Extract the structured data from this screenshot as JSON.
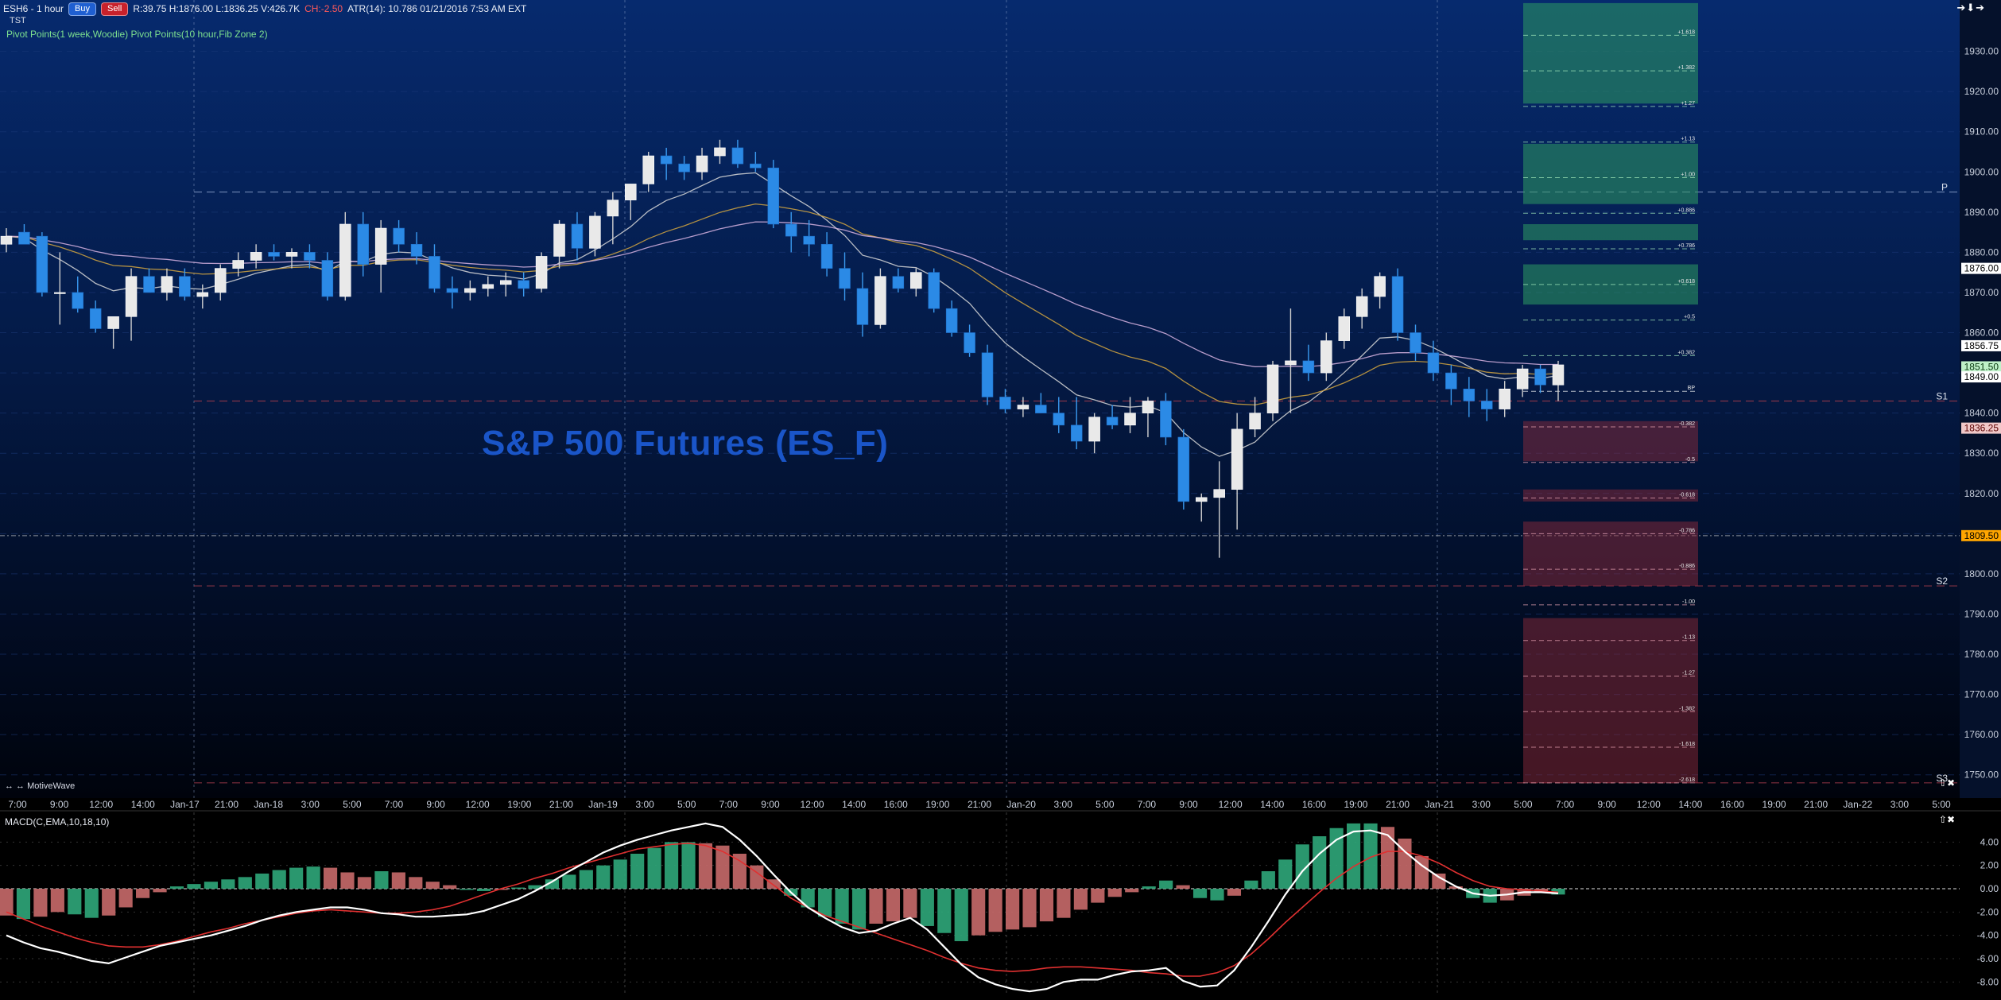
{
  "header": {
    "symbol": "ESH6 - 1 hour",
    "buy_label": "Buy",
    "sell_label": "Sell",
    "stats": "R:39.75  H:1876.00  L:1836.25  V:426.7K",
    "change": "CH:-2.50",
    "atr_info": "ATR(14): 10.786  01/21/2016 7:53 AM  EXT",
    "subtitle": "TST",
    "studies": "Pivot Points(1 week,Woodie) Pivot Points(10 hour,Fib Zone 2)"
  },
  "macd_label": "MACD(C,EMA,10,18,10)",
  "footer_brand": "MotiveWave",
  "corner_icons": "➔➕➔",
  "watermark": "S&P 500 Futures (ES_F)",
  "colors": {
    "bg_top": "#062a6e",
    "bg_bottom": "#000000",
    "up_candle": "#e9e9e9",
    "down_candle": "#2b8ae6",
    "macd_line": "#ffffff",
    "signal_line": "#e03030",
    "hist_pos_up": "#2fa77a",
    "hist_pos_down": "#c86a6a",
    "ema_fast": "#d8d8d8",
    "ema_mid": "#d4a640",
    "ema_slow": "#d7b3e0",
    "current_price": "#ffa500"
  },
  "chart_data": [
    {
      "type": "candlestick",
      "title": "ESH6 - 1 hour",
      "ylim": [
        1745,
        1940
      ],
      "y_ticks": [
        1750,
        1760,
        1770,
        1780,
        1790,
        1800,
        1810,
        1820,
        1830,
        1840,
        1850,
        1860,
        1870,
        1880,
        1890,
        1900,
        1910,
        1920,
        1930
      ],
      "x_tick_labels": [
        "7:00",
        "9:00",
        "12:00",
        "14:00",
        "Jan-17",
        "21:00",
        "Jan-18",
        "3:00",
        "5:00",
        "7:00",
        "9:00",
        "12:00",
        "19:00",
        "21:00",
        "Jan-19",
        "3:00",
        "5:00",
        "7:00",
        "9:00",
        "12:00",
        "14:00",
        "16:00",
        "19:00",
        "21:00",
        "Jan-20",
        "3:00",
        "5:00",
        "7:00",
        "9:00",
        "12:00",
        "14:00",
        "16:00",
        "19:00",
        "21:00",
        "Jan-21",
        "3:00",
        "5:00",
        "7:00",
        "9:00",
        "12:00",
        "14:00",
        "16:00",
        "19:00",
        "21:00",
        "Jan-22",
        "3:00",
        "5:00"
      ],
      "price_labels": [
        {
          "text": "1876.00",
          "value": 1876.0
        },
        {
          "text": "1856.75",
          "value": 1856.75
        },
        {
          "text": "1851.50",
          "value": 1851.5
        },
        {
          "text": "1849.00",
          "value": 1849.0
        },
        {
          "text": "1836.25",
          "value": 1836.25
        },
        {
          "text": "1809.50",
          "value": 1809.5
        }
      ],
      "pivot_labels": [
        {
          "text": "P",
          "value": 1895
        },
        {
          "text": "S1",
          "value": 1843
        },
        {
          "text": "S2",
          "value": 1797
        },
        {
          "text": "S3",
          "value": 1748
        }
      ],
      "fib_zones": [
        {
          "low": 1917,
          "high": 1942,
          "color": "green"
        },
        {
          "low": 1892,
          "high": 1907,
          "color": "green"
        },
        {
          "low": 1883,
          "high": 1887,
          "color": "green"
        },
        {
          "low": 1867,
          "high": 1877,
          "color": "green"
        },
        {
          "low": 1828,
          "high": 1838,
          "color": "red"
        },
        {
          "low": 1818,
          "high": 1821,
          "color": "red"
        },
        {
          "low": 1797,
          "high": 1813,
          "color": "red"
        },
        {
          "low": 1748,
          "high": 1789,
          "color": "red"
        }
      ],
      "fib_labels": [
        "+1.618",
        "+1.382",
        "+1.27",
        "+1.13",
        "+1.00",
        "+0.886",
        "+0.786",
        "+0.618",
        "+0.5",
        "+0.382",
        "BP",
        "-0.382",
        "-0.5",
        "-0.618",
        "-0.786",
        "-0.886",
        "-1.00",
        "-1.13",
        "-1.27",
        "-1.382",
        "-1.618",
        "-2.618"
      ],
      "candles": [
        [
          1882,
          1886,
          1880,
          1884
        ],
        [
          1885,
          1887,
          1882,
          1882
        ],
        [
          1884,
          1885,
          1869,
          1870
        ],
        [
          1870,
          1880,
          1862,
          1870
        ],
        [
          1870,
          1874,
          1865,
          1866
        ],
        [
          1866,
          1868,
          1860,
          1861
        ],
        [
          1861,
          1864,
          1856,
          1864
        ],
        [
          1864,
          1876,
          1858,
          1874
        ],
        [
          1874,
          1876,
          1870,
          1870
        ],
        [
          1870,
          1876,
          1868,
          1874
        ],
        [
          1874,
          1876,
          1868,
          1869
        ],
        [
          1869,
          1872,
          1866,
          1870
        ],
        [
          1870,
          1877,
          1868,
          1876
        ],
        [
          1876,
          1880,
          1874,
          1878
        ],
        [
          1878,
          1882,
          1876,
          1880
        ],
        [
          1880,
          1882,
          1878,
          1879
        ],
        [
          1879,
          1881,
          1876,
          1880
        ],
        [
          1880,
          1882,
          1876,
          1878
        ],
        [
          1878,
          1880,
          1868,
          1869
        ],
        [
          1869,
          1890,
          1868,
          1887
        ],
        [
          1887,
          1890,
          1874,
          1877
        ],
        [
          1877,
          1888,
          1870,
          1886
        ],
        [
          1886,
          1888,
          1880,
          1882
        ],
        [
          1882,
          1885,
          1877,
          1879
        ],
        [
          1879,
          1882,
          1870,
          1871
        ],
        [
          1871,
          1874,
          1866,
          1870
        ],
        [
          1870,
          1873,
          1868,
          1871
        ],
        [
          1871,
          1874,
          1869,
          1872
        ],
        [
          1872,
          1875,
          1869,
          1873
        ],
        [
          1873,
          1875,
          1869,
          1871
        ],
        [
          1871,
          1880,
          1870,
          1879
        ],
        [
          1879,
          1888,
          1876,
          1887
        ],
        [
          1887,
          1890,
          1878,
          1881
        ],
        [
          1881,
          1890,
          1879,
          1889
        ],
        [
          1889,
          1895,
          1882,
          1893
        ],
        [
          1893,
          1897,
          1888,
          1897
        ],
        [
          1897,
          1905,
          1895,
          1904
        ],
        [
          1904,
          1906,
          1898,
          1902
        ],
        [
          1902,
          1904,
          1898,
          1900
        ],
        [
          1900,
          1906,
          1898,
          1904
        ],
        [
          1904,
          1908,
          1902,
          1906
        ],
        [
          1906,
          1908,
          1901,
          1902
        ],
        [
          1902,
          1905,
          1900,
          1901
        ],
        [
          1901,
          1903,
          1886,
          1887
        ],
        [
          1887,
          1890,
          1880,
          1884
        ],
        [
          1884,
          1888,
          1879,
          1882
        ],
        [
          1882,
          1885,
          1874,
          1876
        ],
        [
          1876,
          1880,
          1868,
          1871
        ],
        [
          1871,
          1875,
          1859,
          1862
        ],
        [
          1862,
          1876,
          1861,
          1874
        ],
        [
          1874,
          1876,
          1870,
          1871
        ],
        [
          1871,
          1876,
          1869,
          1875
        ],
        [
          1875,
          1876,
          1865,
          1866
        ],
        [
          1866,
          1868,
          1859,
          1860
        ],
        [
          1860,
          1862,
          1854,
          1855
        ],
        [
          1855,
          1857,
          1842,
          1844
        ],
        [
          1844,
          1846,
          1840,
          1841
        ],
        [
          1841,
          1844,
          1839,
          1842
        ],
        [
          1842,
          1845,
          1840,
          1840
        ],
        [
          1840,
          1844,
          1835,
          1837
        ],
        [
          1837,
          1844,
          1831,
          1833
        ],
        [
          1833,
          1840,
          1830,
          1839
        ],
        [
          1839,
          1842,
          1836,
          1837
        ],
        [
          1837,
          1844,
          1835,
          1840
        ],
        [
          1840,
          1844,
          1834,
          1843
        ],
        [
          1843,
          1845,
          1832,
          1834
        ],
        [
          1834,
          1836,
          1816,
          1818
        ],
        [
          1818,
          1820,
          1813,
          1819
        ],
        [
          1819,
          1828,
          1804,
          1821
        ],
        [
          1821,
          1840,
          1811,
          1836
        ],
        [
          1836,
          1844,
          1834,
          1840
        ],
        [
          1840,
          1853,
          1838,
          1852
        ],
        [
          1852,
          1866,
          1840,
          1853
        ],
        [
          1853,
          1857,
          1848,
          1850
        ],
        [
          1850,
          1860,
          1848,
          1858
        ],
        [
          1858,
          1866,
          1856,
          1864
        ],
        [
          1864,
          1871,
          1861,
          1869
        ],
        [
          1869,
          1875,
          1866,
          1874
        ],
        [
          1874,
          1876,
          1858,
          1860
        ],
        [
          1860,
          1862,
          1853,
          1855
        ],
        [
          1855,
          1858,
          1848,
          1850
        ],
        [
          1850,
          1852,
          1842,
          1846
        ],
        [
          1846,
          1849,
          1839,
          1843
        ],
        [
          1843,
          1846,
          1838,
          1841
        ],
        [
          1841,
          1848,
          1839,
          1846
        ],
        [
          1846,
          1852,
          1844,
          1851
        ],
        [
          1851,
          1852,
          1845,
          1847
        ],
        [
          1847,
          1853,
          1843,
          1852
        ]
      ]
    },
    {
      "type": "bar",
      "title": "MACD(C,EMA,10,18,10)",
      "ylim": [
        -9,
        6
      ],
      "y_ticks": [
        -8.0,
        -6.0,
        -4.0,
        -2.0,
        0.0,
        2.0,
        4.0
      ],
      "y_tick_labels": [
        "-8.00",
        "-6.00",
        "-4.00",
        "-2.00",
        "0.00",
        "2.00",
        "4.00"
      ],
      "histogram": [
        -2.3,
        -2.6,
        -2.4,
        -2.0,
        -2.2,
        -2.5,
        -2.3,
        -1.6,
        -0.8,
        -0.3,
        0.2,
        0.4,
        0.6,
        0.8,
        1.0,
        1.3,
        1.6,
        1.8,
        1.9,
        1.8,
        1.4,
        1.0,
        1.5,
        1.4,
        1.0,
        0.6,
        0.3,
        -0.1,
        -0.2,
        -0.1,
        0.1,
        0.3,
        0.8,
        1.2,
        1.6,
        2.0,
        2.5,
        3.0,
        3.5,
        4.0,
        4.0,
        3.9,
        3.7,
        3.0,
        2.0,
        0.8,
        -0.6,
        -1.6,
        -2.4,
        -3.0,
        -3.5,
        -3.0,
        -2.8,
        -2.5,
        -3.2,
        -3.8,
        -4.5,
        -4.0,
        -3.7,
        -3.5,
        -3.3,
        -2.8,
        -2.5,
        -1.8,
        -1.2,
        -0.7,
        -0.3,
        0.2,
        0.7,
        0.3,
        -0.8,
        -1.0,
        -0.6,
        0.7,
        1.5,
        2.5,
        3.8,
        4.5,
        5.2,
        5.6,
        5.6,
        5.3,
        4.3,
        2.8,
        1.3,
        0.2,
        -0.8,
        -1.2,
        -1.0,
        -0.6,
        -0.3,
        -0.5
      ],
      "macd_line": [
        -4.0,
        -4.6,
        -5.1,
        -5.4,
        -5.8,
        -6.2,
        -6.4,
        -5.9,
        -5.4,
        -4.9,
        -4.6,
        -4.3,
        -4.0,
        -3.6,
        -3.2,
        -2.7,
        -2.3,
        -2.0,
        -1.8,
        -1.6,
        -1.6,
        -1.8,
        -2.1,
        -2.2,
        -2.4,
        -2.4,
        -2.3,
        -2.2,
        -1.9,
        -1.4,
        -0.9,
        -0.2,
        0.6,
        1.5,
        2.3,
        3.1,
        3.7,
        4.2,
        4.6,
        5.0,
        5.3,
        5.6,
        5.3,
        4.2,
        2.8,
        1.2,
        -0.3,
        -1.6,
        -2.5,
        -3.3,
        -3.8,
        -3.6,
        -3.0,
        -2.5,
        -3.5,
        -5.0,
        -6.5,
        -7.6,
        -8.2,
        -8.6,
        -8.8,
        -8.6,
        -8.0,
        -7.8,
        -7.8,
        -7.4,
        -7.1,
        -7.0,
        -6.8,
        -7.9,
        -8.4,
        -8.3,
        -7.0,
        -5.0,
        -2.8,
        -0.5,
        1.5,
        3.0,
        4.2,
        4.9,
        5.0,
        4.6,
        3.2,
        2.0,
        1.0,
        0.2,
        -0.4,
        -0.6,
        -0.5,
        -0.3,
        -0.3,
        -0.4
      ],
      "signal_line": [
        -2.0,
        -2.6,
        -3.2,
        -3.7,
        -4.2,
        -4.6,
        -4.9,
        -5.0,
        -5.0,
        -4.8,
        -4.5,
        -4.1,
        -3.7,
        -3.4,
        -3.0,
        -2.7,
        -2.4,
        -2.1,
        -1.9,
        -1.8,
        -1.9,
        -2.0,
        -2.1,
        -2.1,
        -2.0,
        -1.8,
        -1.5,
        -1.0,
        -0.5,
        0.0,
        0.4,
        0.9,
        1.3,
        1.8,
        2.2,
        2.6,
        3.0,
        3.4,
        3.6,
        3.8,
        3.9,
        3.7,
        3.2,
        2.4,
        1.4,
        0.3,
        -0.8,
        -1.6,
        -2.3,
        -2.8,
        -3.3,
        -3.8,
        -4.3,
        -4.8,
        -5.3,
        -5.9,
        -6.4,
        -6.8,
        -7.0,
        -7.1,
        -7.0,
        -6.8,
        -6.7,
        -6.7,
        -6.8,
        -6.9,
        -7.0,
        -7.2,
        -7.3,
        -7.5,
        -7.5,
        -7.2,
        -6.6,
        -5.6,
        -4.3,
        -2.9,
        -1.6,
        -0.3,
        0.9,
        1.9,
        2.7,
        3.2,
        3.2,
        2.8,
        2.2,
        1.4,
        0.7,
        0.2,
        0.0,
        -0.1,
        -0.2,
        -0.3
      ]
    }
  ]
}
